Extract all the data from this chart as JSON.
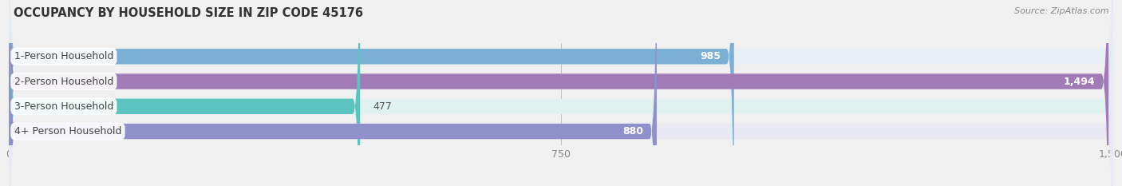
{
  "title": "OCCUPANCY BY HOUSEHOLD SIZE IN ZIP CODE 45176",
  "source": "Source: ZipAtlas.com",
  "categories": [
    "1-Person Household",
    "2-Person Household",
    "3-Person Household",
    "4+ Person Household"
  ],
  "values": [
    985,
    1494,
    477,
    880
  ],
  "bar_colors": [
    "#7bafd4",
    "#a07bb5",
    "#5bc4c0",
    "#9090cc"
  ],
  "bar_bg_colors": [
    "#e8eef5",
    "#eae4ef",
    "#dff2f0",
    "#e8e8f3"
  ],
  "xlim": [
    0,
    1500
  ],
  "xticks": [
    0,
    750,
    1500
  ],
  "xtick_labels": [
    "0",
    "750",
    "1,500"
  ],
  "background_color": "#f0f0f0",
  "bar_height": 0.62,
  "title_fontsize": 10.5,
  "source_fontsize": 8,
  "label_fontsize": 9,
  "category_fontsize": 9,
  "tick_fontsize": 9
}
